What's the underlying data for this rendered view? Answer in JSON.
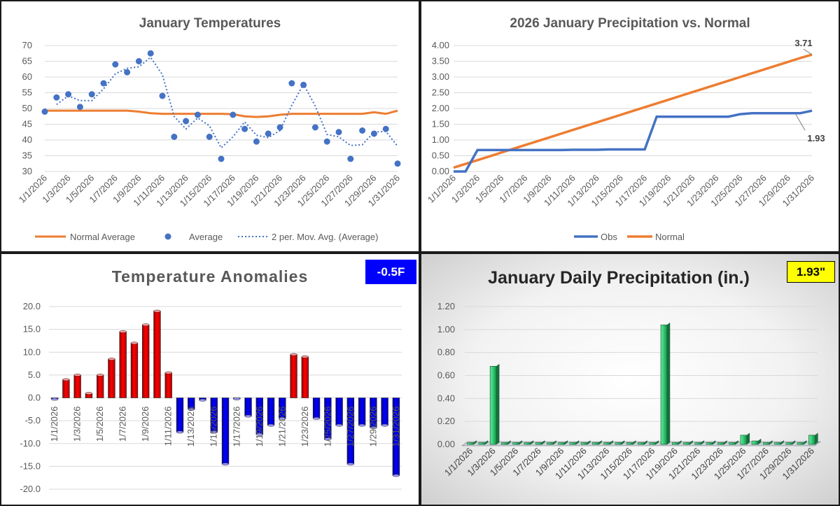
{
  "chart_data": [
    {
      "id": "temps",
      "type": "line",
      "title": "January Temperatures",
      "x": [
        "1/1/2026",
        "1/2/2026",
        "1/3/2026",
        "1/4/2026",
        "1/5/2026",
        "1/6/2026",
        "1/7/2026",
        "1/8/2026",
        "1/9/2026",
        "1/10/2026",
        "1/11/2026",
        "1/12/2026",
        "1/13/2026",
        "1/14/2026",
        "1/15/2026",
        "1/16/2026",
        "1/17/2026",
        "1/18/2026",
        "1/19/2026",
        "1/20/2026",
        "1/21/2026",
        "1/22/2026",
        "1/23/2026",
        "1/24/2026",
        "1/25/2026",
        "1/26/2026",
        "1/27/2026",
        "1/28/2026",
        "1/29/2026",
        "1/30/2026",
        "1/31/2026"
      ],
      "xtick_labels": [
        "1/1/2026",
        "1/3/2026",
        "1/5/2026",
        "1/7/2026",
        "1/9/2026",
        "1/11/2026",
        "1/13/2026",
        "1/15/2026",
        "1/17/2026",
        "1/19/2026",
        "1/21/2026",
        "1/23/2026",
        "1/25/2026",
        "1/27/2026",
        "1/29/2026",
        "1/31/2026"
      ],
      "ylim": [
        30,
        70
      ],
      "yticks": [
        30,
        35,
        40,
        45,
        50,
        55,
        60,
        65,
        70
      ],
      "grid": true,
      "legend_position": "bottom",
      "series": [
        {
          "name": "Normal Average",
          "style": "line",
          "color": "#ed7d31",
          "values": [
            49.3,
            49.3,
            49.3,
            49.3,
            49.3,
            49.3,
            49.3,
            49.3,
            49.0,
            48.5,
            48.3,
            48.3,
            48.3,
            48.3,
            48.3,
            48.3,
            48.2,
            47.5,
            47.3,
            47.5,
            48.0,
            48.3,
            48.3,
            48.3,
            48.3,
            48.3,
            48.3,
            48.3,
            48.8,
            48.3,
            49.3
          ]
        },
        {
          "name": "Average",
          "style": "markers",
          "color": "#4472c4",
          "values": [
            49,
            53.5,
            54.5,
            50.5,
            54.5,
            58,
            64,
            61.5,
            65,
            67.5,
            54,
            41,
            46,
            48,
            41,
            34,
            48,
            43.5,
            39.5,
            42,
            44,
            58,
            57.5,
            44,
            39.5,
            42.5,
            34,
            43,
            42,
            43.5,
            32.5
          ]
        },
        {
          "name": "2 per. Mov. Avg. (Average)",
          "style": "dotted",
          "color": "#4472c4",
          "values": [
            null,
            51.25,
            54,
            52.5,
            52.5,
            56.25,
            61,
            62.75,
            63.25,
            66.25,
            60.75,
            47.5,
            43.5,
            47,
            44.5,
            37.5,
            41,
            45.75,
            41.5,
            40.75,
            43,
            51,
            57.75,
            50.75,
            41.75,
            41,
            38.25,
            38.5,
            42.5,
            42.75,
            38
          ]
        }
      ]
    },
    {
      "id": "precip_cum",
      "type": "line",
      "title": "2026 January Precipitation vs. Normal",
      "x": [
        "1/1/2026",
        "1/2/2026",
        "1/3/2026",
        "1/4/2026",
        "1/5/2026",
        "1/6/2026",
        "1/7/2026",
        "1/8/2026",
        "1/9/2026",
        "1/10/2026",
        "1/11/2026",
        "1/12/2026",
        "1/13/2026",
        "1/14/2026",
        "1/15/2026",
        "1/16/2026",
        "1/17/2026",
        "1/18/2026",
        "1/19/2026",
        "1/20/2026",
        "1/21/2026",
        "1/22/2026",
        "1/23/2026",
        "1/24/2026",
        "1/25/2026",
        "1/26/2026",
        "1/27/2026",
        "1/28/2026",
        "1/29/2026",
        "1/30/2026",
        "1/31/2026"
      ],
      "xtick_labels": [
        "1/1/2026",
        "1/3/2026",
        "1/5/2026",
        "1/7/2026",
        "1/9/2026",
        "1/11/2026",
        "1/13/2026",
        "1/15/2026",
        "1/17/2026",
        "1/19/2026",
        "1/21/2026",
        "1/23/2026",
        "1/25/2026",
        "1/27/2026",
        "1/29/2026",
        "1/31/2026"
      ],
      "ylim": [
        0,
        4
      ],
      "yticks": [
        "0.00",
        "0.50",
        "1.00",
        "1.50",
        "2.00",
        "2.50",
        "3.00",
        "3.50",
        "4.00"
      ],
      "grid": true,
      "legend_position": "bottom",
      "series": [
        {
          "name": "Obs",
          "color": "#4472c4",
          "values": [
            0,
            0,
            0.68,
            0.68,
            0.68,
            0.68,
            0.68,
            0.68,
            0.68,
            0.68,
            0.69,
            0.69,
            0.69,
            0.7,
            0.7,
            0.7,
            0.7,
            1.74,
            1.74,
            1.74,
            1.74,
            1.74,
            1.74,
            1.74,
            1.82,
            1.85,
            1.85,
            1.85,
            1.85,
            1.85,
            1.93
          ]
        },
        {
          "name": "Normal",
          "color": "#ed7d31",
          "values": [
            0.12,
            0.24,
            0.36,
            0.48,
            0.6,
            0.72,
            0.84,
            0.96,
            1.08,
            1.2,
            1.32,
            1.44,
            1.56,
            1.68,
            1.8,
            1.92,
            2.04,
            2.16,
            2.28,
            2.4,
            2.52,
            2.64,
            2.76,
            2.88,
            3.0,
            3.12,
            3.24,
            3.36,
            3.48,
            3.6,
            3.71
          ]
        }
      ],
      "annotations": [
        {
          "text": "3.71",
          "series": "Normal",
          "index": 30
        },
        {
          "text": "1.93",
          "series": "Obs",
          "index": 30
        }
      ]
    },
    {
      "id": "anom",
      "type": "bar",
      "title": "Temperature Anomalies",
      "badge": "-0.5F",
      "x": [
        "1/1/2026",
        "1/2/2026",
        "1/3/2026",
        "1/4/2026",
        "1/5/2026",
        "1/6/2026",
        "1/7/2026",
        "1/8/2026",
        "1/9/2026",
        "1/10/2026",
        "1/11/2026",
        "1/12/2026",
        "1/13/2026",
        "1/14/2026",
        "1/15/2026",
        "1/16/2026",
        "1/17/2026",
        "1/18/2026",
        "1/19/2026",
        "1/20/2026",
        "1/21/2026",
        "1/22/2026",
        "1/23/2026",
        "1/24/2026",
        "1/25/2026",
        "1/26/2026",
        "1/27/2026",
        "1/28/2026",
        "1/29/2026",
        "1/30/2026",
        "1/31/2026"
      ],
      "xtick_labels": [
        "1/1/2026",
        "1/3/2026",
        "1/5/2026",
        "1/7/2026",
        "1/9/2026",
        "1/11/2026",
        "1/13/2026",
        "1/15/2026",
        "1/17/2026",
        "1/19/2026",
        "1/21/2026",
        "1/23/2026",
        "1/25/2026",
        "1/27/2026",
        "1/29/2026",
        "1/31/2026"
      ],
      "ylim": [
        -20,
        20
      ],
      "yticks": [
        "-20.0",
        "-15.0",
        "-10.0",
        "-5.0",
        "0.0",
        "5.0",
        "10.0",
        "15.0",
        "20.0"
      ],
      "grid": true,
      "positive_color": "#ff0000",
      "negative_color": "#0000ff",
      "values": [
        -0.3,
        4,
        5,
        1,
        5,
        8.5,
        14.5,
        12,
        16,
        19,
        5.5,
        -7.5,
        -2.5,
        -0.5,
        -7.5,
        -14.5,
        -0.2,
        -4,
        -8,
        -6,
        -4.5,
        9.5,
        9,
        -4.5,
        -9,
        -6,
        -14.5,
        -6,
        -6.5,
        -6,
        -17
      ]
    },
    {
      "id": "daily_precip",
      "type": "bar",
      "title": "January Daily Precipitation (in.)",
      "badge": "1.93\"",
      "x": [
        "1/1/2026",
        "1/2/2026",
        "1/3/2026",
        "1/4/2026",
        "1/5/2026",
        "1/6/2026",
        "1/7/2026",
        "1/8/2026",
        "1/9/2026",
        "1/10/2026",
        "1/11/2026",
        "1/12/2026",
        "1/13/2026",
        "1/14/2026",
        "1/15/2026",
        "1/16/2026",
        "1/17/2026",
        "1/18/2026",
        "1/19/2026",
        "1/20/2026",
        "1/21/2026",
        "1/22/2026",
        "1/23/2026",
        "1/24/2026",
        "1/25/2026",
        "1/26/2026",
        "1/27/2026",
        "1/28/2026",
        "1/29/2026",
        "1/30/2026",
        "1/31/2026"
      ],
      "xtick_labels": [
        "1/1/2026",
        "1/3/2026",
        "1/5/2026",
        "1/7/2026",
        "1/9/2026",
        "1/11/2026",
        "1/13/2026",
        "1/15/2026",
        "1/17/2026",
        "1/19/2026",
        "1/21/2026",
        "1/23/2026",
        "1/25/2026",
        "1/27/2026",
        "1/29/2026",
        "1/31/2026"
      ],
      "ylim": [
        0,
        1.2
      ],
      "yticks": [
        "0.00",
        "0.20",
        "0.40",
        "0.60",
        "0.80",
        "1.00",
        "1.20"
      ],
      "grid": true,
      "bar_color": "#2ecc71",
      "values": [
        0,
        0,
        0.68,
        0,
        0,
        0,
        0,
        0,
        0,
        0,
        0.01,
        0,
        0,
        0.01,
        0,
        0,
        0,
        1.04,
        0,
        0,
        0,
        0,
        0,
        0,
        0.08,
        0.03,
        0,
        0,
        0,
        0,
        0.08
      ]
    }
  ]
}
